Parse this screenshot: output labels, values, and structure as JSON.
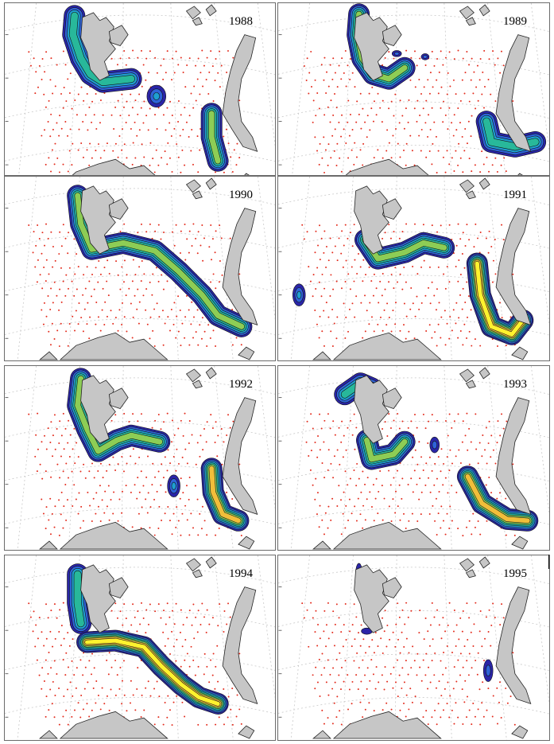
{
  "panels": [
    {
      "year": "1988",
      "contours": [
        "svalbard-west",
        "central-patch",
        "novaya-zemlya-west"
      ]
    },
    {
      "year": "1989",
      "contours": [
        "svalbard-hook",
        "north-blips",
        "novaya-zemlya-south"
      ]
    },
    {
      "year": "1990",
      "contours": [
        "svalbard-band",
        "long-band-east"
      ]
    },
    {
      "year": "1991",
      "contours": [
        "svalbard-south",
        "west-patch",
        "novaya-zemlya-large"
      ]
    },
    {
      "year": "1992",
      "contours": [
        "svalbard-west",
        "central-patch",
        "novaya-zemlya-west"
      ]
    },
    {
      "year": "1993",
      "contours": [
        "svalbard-tip",
        "svalbard-south",
        "north-blip",
        "novaya-zemlya-large"
      ]
    },
    {
      "year": "1994",
      "contours": [
        "svalbard-west",
        "long-band-high"
      ]
    },
    {
      "year": "1995",
      "contours": [
        "small-patches"
      ]
    }
  ],
  "legend": {
    "sample_color": "#e32b1c",
    "land_color": "#c6c6c6",
    "grid_color": "#c8c8c8",
    "contour_colors": [
      "#2a25a8",
      "#2f63d8",
      "#1f9fd0",
      "#28b89a",
      "#8dcd55",
      "#f1be3a",
      "#fff22e"
    ]
  }
}
